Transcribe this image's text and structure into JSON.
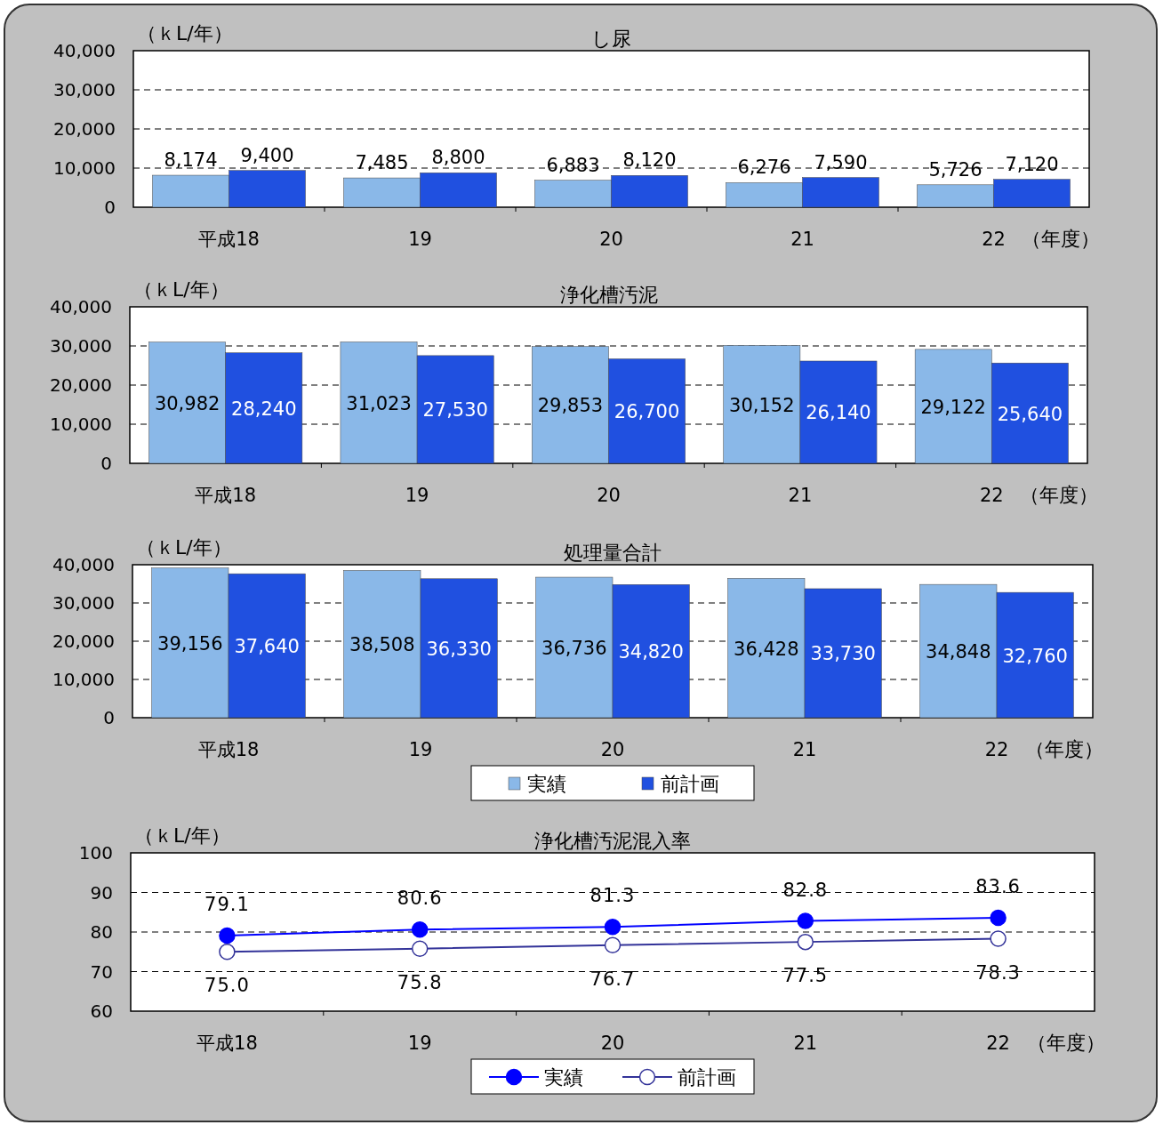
{
  "chart_data": [
    {
      "type": "bar",
      "title": "し尿",
      "ylabel": "（ｋL/年）",
      "xlabel": "（年度）",
      "categories": [
        "平成18",
        "19",
        "20",
        "21",
        "22"
      ],
      "ylim": [
        0,
        40000
      ],
      "yticks": [
        {
          "value": 0,
          "label": "0"
        },
        {
          "value": 10000,
          "label": "10,000"
        },
        {
          "value": 20000,
          "label": "20,000"
        },
        {
          "value": 30000,
          "label": "30,000"
        },
        {
          "value": 40000,
          "label": "40,000"
        }
      ],
      "grid": "y",
      "legend": false,
      "series": [
        {
          "color": "#8ab8e8",
          "values": [
            8174,
            7485,
            6883,
            6276,
            5726
          ],
          "value_labels": [
            "8,174",
            "7,485",
            "6,883",
            "6,276",
            "5,726"
          ]
        },
        {
          "color": "#2050e0",
          "values": [
            9400,
            8800,
            8120,
            7590,
            7120
          ],
          "value_labels": [
            "9,400",
            "8,800",
            "8,120",
            "7,590",
            "7,120"
          ]
        }
      ]
    },
    {
      "type": "bar",
      "title": "浄化槽汚泥",
      "ylabel": "（ｋL/年）",
      "xlabel": "（年度）",
      "categories": [
        "平成18",
        "19",
        "20",
        "21",
        "22"
      ],
      "ylim": [
        0,
        40000
      ],
      "yticks": [
        {
          "value": 0,
          "label": "0"
        },
        {
          "value": 10000,
          "label": "10,000"
        },
        {
          "value": 20000,
          "label": "20,000"
        },
        {
          "value": 30000,
          "label": "30,000"
        },
        {
          "value": 40000,
          "label": "40,000"
        }
      ],
      "grid": "y",
      "legend": false,
      "series": [
        {
          "color": "#8ab8e8",
          "values": [
            30982,
            31023,
            29853,
            30152,
            29122
          ],
          "value_labels": [
            "30,982",
            "31,023",
            "29,853",
            "30,152",
            "29,122"
          ]
        },
        {
          "color": "#2050e0",
          "values": [
            28240,
            27530,
            26700,
            26140,
            25640
          ],
          "value_labels": [
            "28,240",
            "27,530",
            "26,700",
            "26,140",
            "25,640"
          ]
        }
      ]
    },
    {
      "type": "bar",
      "title": "処理量合計",
      "ylabel": "（ｋL/年）",
      "xlabel": "（年度）",
      "categories": [
        "平成18",
        "19",
        "20",
        "21",
        "22"
      ],
      "ylim": [
        0,
        40000
      ],
      "yticks": [
        {
          "value": 0,
          "label": "0"
        },
        {
          "value": 10000,
          "label": "10,000"
        },
        {
          "value": 20000,
          "label": "20,000"
        },
        {
          "value": 30000,
          "label": "30,000"
        },
        {
          "value": 40000,
          "label": "40,000"
        }
      ],
      "grid": "y",
      "legend": "bottom",
      "series": [
        {
          "name": "実績",
          "color": "#8ab8e8",
          "values": [
            39156,
            38508,
            36736,
            36428,
            34848
          ],
          "value_labels": [
            "39,156",
            "38,508",
            "36,736",
            "36,428",
            "34,848"
          ]
        },
        {
          "name": "前計画",
          "color": "#2050e0",
          "values": [
            37640,
            36330,
            34820,
            33730,
            32760
          ],
          "value_labels": [
            "37,640",
            "36,330",
            "34,820",
            "33,730",
            "32,760"
          ]
        }
      ]
    },
    {
      "type": "line",
      "title": "浄化槽汚泥混入率",
      "ylabel": "（ｋL/年）",
      "xlabel": "（年度）",
      "categories": [
        "平成18",
        "19",
        "20",
        "21",
        "22"
      ],
      "ylim": [
        60,
        100
      ],
      "yticks": [
        60,
        70,
        80,
        90,
        100
      ],
      "grid": "y",
      "legend": "bottom",
      "marker": "circle",
      "series": [
        {
          "name": "実績",
          "color": "#0000ff",
          "values": [
            79.1,
            80.6,
            81.3,
            82.8,
            83.6
          ],
          "value_labels": [
            "79.1",
            "80.6",
            "81.3",
            "82.8",
            "83.6"
          ]
        },
        {
          "name": "前計画",
          "color": "#333399",
          "values": [
            75.0,
            75.8,
            76.7,
            77.5,
            78.3
          ],
          "value_labels": [
            "75.0",
            "75.8",
            "76.7",
            "77.5",
            "78.3"
          ]
        }
      ]
    }
  ]
}
